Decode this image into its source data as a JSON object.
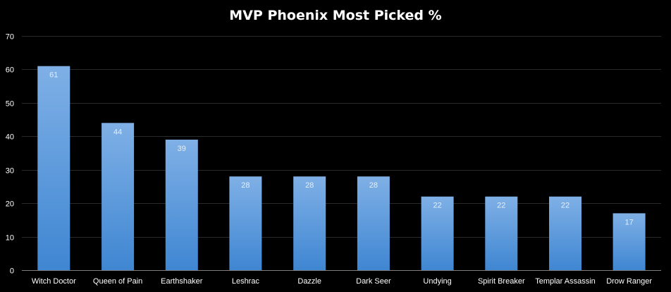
{
  "chart_data": {
    "type": "bar",
    "title": "MVP Phoenix Most Picked %",
    "xlabel": "",
    "ylabel": "",
    "categories": [
      "Witch Doctor",
      "Queen of Pain",
      "Earthshaker",
      "Leshrac",
      "Dazzle",
      "Dark Seer",
      "Undying",
      "Spirit Breaker",
      "Templar Assassin",
      "Drow Ranger"
    ],
    "values": [
      61,
      44,
      39,
      28,
      28,
      28,
      22,
      22,
      22,
      17
    ],
    "ylim": [
      0,
      70
    ],
    "yticks": [
      0,
      10,
      20,
      30,
      40,
      50,
      60,
      70
    ],
    "grid": true,
    "legend": "none",
    "colors": {
      "background": "#000000",
      "bar_top": "#7fb0e6",
      "bar_bottom": "#3f86d2",
      "gridline": "#2a2a2a",
      "text": "#ffffff"
    }
  }
}
